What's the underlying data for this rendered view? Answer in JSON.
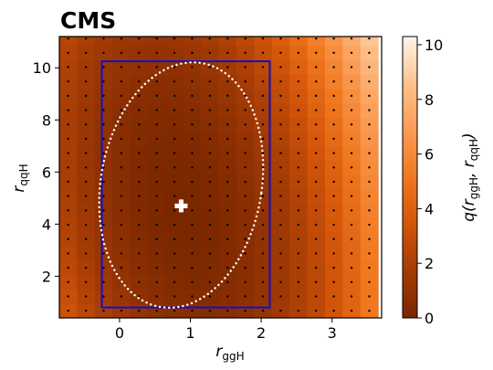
{
  "experiment_label": "CMS",
  "chart_data": {
    "type": "heatmap",
    "xlabel": {
      "var": "r",
      "sub": "ggH"
    },
    "ylabel": {
      "var": "r",
      "sub": "qqH"
    },
    "colorbar_label": {
      "func": "q(",
      "var1": "r",
      "sub1": "ggH",
      "sep": ", ",
      "var2": "r",
      "sub2": "qqH",
      "close": ")"
    },
    "xlim": [
      -0.85,
      3.7
    ],
    "ylim": [
      0.4,
      11.2
    ],
    "x_ticks": [
      0,
      1,
      2,
      3
    ],
    "y_ticks": [
      2,
      4,
      6,
      8,
      10
    ],
    "colorbar_range": [
      0,
      10.3
    ],
    "colorbar_ticks": [
      0,
      2,
      4,
      6,
      8,
      10
    ],
    "grid": {
      "x_start": -0.85,
      "x_step": 0.25,
      "nx": 18,
      "y_start": 0.4,
      "y_step": 0.55,
      "ny": 20,
      "q_model": {
        "best_fit": [
          0.87,
          4.7
        ],
        "a": 0.8,
        "b": 0.033,
        "c": 0.1
      }
    },
    "best_fit": {
      "x": 0.87,
      "y": 4.7,
      "marker": "plus",
      "color": "#ffffff"
    },
    "contour_68": {
      "center": [
        0.87,
        5.5
      ],
      "rx": 1.25,
      "ry": 4.7,
      "tilt_deg": -25,
      "color": "#ffffff",
      "style": "dotted"
    },
    "box": {
      "x0": -0.25,
      "x1": 2.12,
      "y0": 0.8,
      "y1": 10.25,
      "color": "#1010c8"
    },
    "colormap": [
      "#7a2700",
      "#a43b05",
      "#d35509",
      "#f0781e",
      "#fb9c55",
      "#fdc28d",
      "#fff5eb"
    ]
  }
}
